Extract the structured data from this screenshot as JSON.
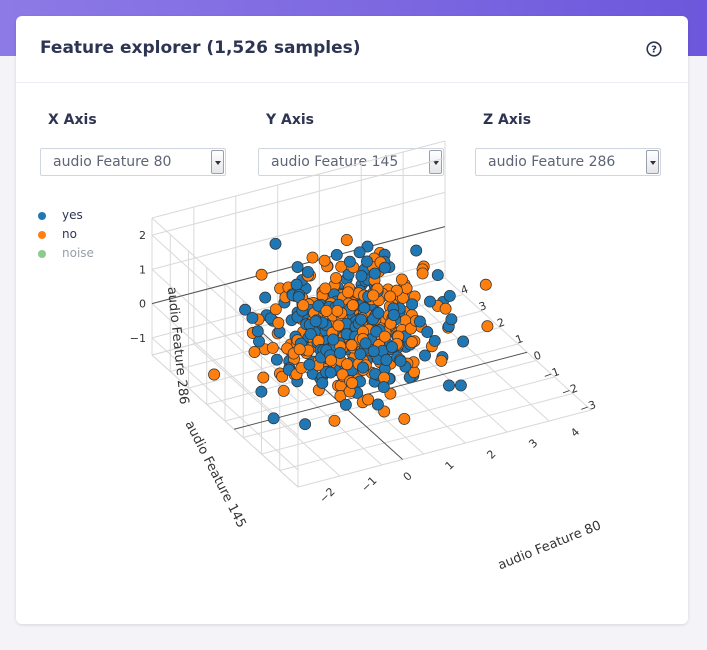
{
  "header": {
    "title": "Feature explorer (1,526 samples)",
    "help_icon": "question-circle-icon"
  },
  "axes_controls": [
    {
      "label": "X Axis",
      "value": "audio Feature 80"
    },
    {
      "label": "Y Axis",
      "value": "audio Feature 145"
    },
    {
      "label": "Z Axis",
      "value": "audio Feature 286"
    }
  ],
  "legend": [
    {
      "label": "yes",
      "color": "#1f77b4"
    },
    {
      "label": "no",
      "color": "#ff7f0e"
    },
    {
      "label": "noise",
      "color": "#2ca02c",
      "muted": true
    }
  ],
  "chart_data": {
    "type": "scatter",
    "dimensions": 3,
    "xlabel": "audio Feature 80",
    "ylabel": "audio Feature 145",
    "zlabel": "audio Feature 286",
    "x_ticks": [
      "−2",
      "−1",
      "0",
      "1",
      "2",
      "3",
      "4"
    ],
    "y_ticks": [
      "−3",
      "−2",
      "−1",
      "0",
      "1",
      "2",
      "3",
      "4"
    ],
    "z_ticks": [
      "−1",
      "0",
      "1",
      "2"
    ],
    "xlim": [
      -2.5,
      4.5
    ],
    "ylim": [
      -3.5,
      4.5
    ],
    "zlim": [
      -1.5,
      2.5
    ],
    "series": [
      {
        "name": "yes",
        "color": "#1f77b4",
        "count_estimate": 500
      },
      {
        "name": "no",
        "color": "#ff7f0e",
        "count_estimate": 500
      },
      {
        "name": "noise",
        "color": "#2ca02c",
        "count_estimate": 0
      }
    ]
  }
}
